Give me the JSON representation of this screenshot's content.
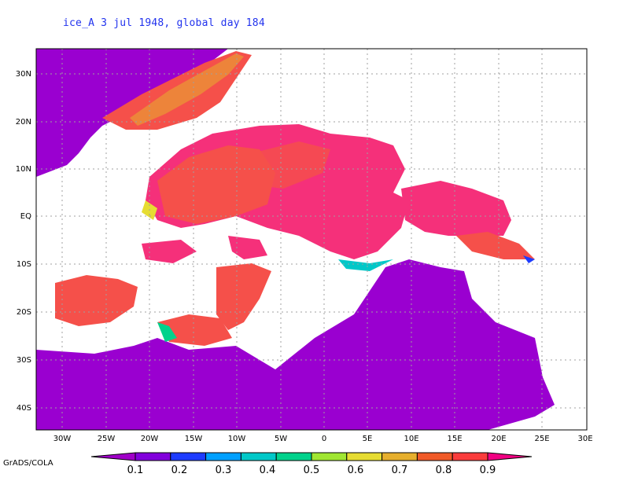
{
  "title": "ice_A 3 jul 1948, global day 184",
  "credit": "GrADS/COLA",
  "lat_labels": [
    "30N",
    "20N",
    "10N",
    "EQ",
    "10S",
    "20S",
    "30S",
    "40S"
  ],
  "lon_labels": [
    "30W",
    "25W",
    "20W",
    "15W",
    "10W",
    "5W",
    "0",
    "5E",
    "10E",
    "15E",
    "20E",
    "25E",
    "30E"
  ],
  "colorbar": {
    "levels": [
      "0.1",
      "0.2",
      "0.3",
      "0.4",
      "0.5",
      "0.6",
      "0.7",
      "0.8",
      "0.9"
    ],
    "colors": [
      "#a000c8",
      "#8200dc",
      "#1e3cff",
      "#00a0ff",
      "#00c8c8",
      "#00d28c",
      "#a0e632",
      "#e6dc32",
      "#e6af2d",
      "#f05a28",
      "#fa3c3c",
      "#f00082"
    ]
  },
  "colors": {
    "ocean_low": "#9a00d0",
    "land_high": "#f5307a",
    "land_mid": "#f5504a",
    "title": "#2233ee"
  }
}
